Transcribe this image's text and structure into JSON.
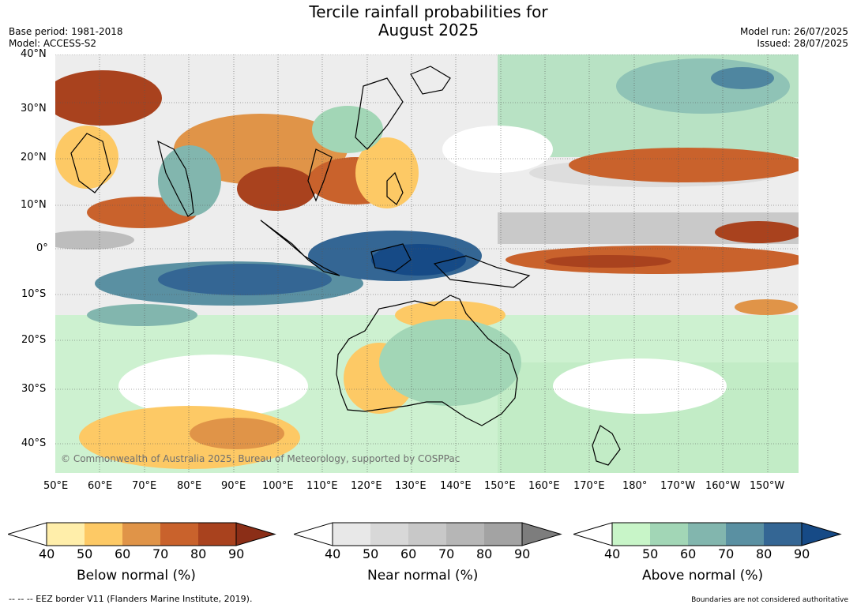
{
  "header": {
    "title_line1": "Tercile rainfall probabilities for",
    "title_line2": "August 2025",
    "base_period": "Base period: 1981-2018",
    "model": "Model: ACCESS-S2",
    "model_run": "Model run: 26/07/2025",
    "issued": "Issued: 28/07/2025"
  },
  "map": {
    "lat_labels": [
      "40°N",
      "30°N",
      "20°N",
      "10°N",
      "0°",
      "10°S",
      "20°S",
      "30°S",
      "40°S"
    ],
    "lon_labels": [
      "50°E",
      "60°E",
      "70°E",
      "80°E",
      "90°E",
      "100°E",
      "110°E",
      "120°E",
      "130°E",
      "140°E",
      "150°E",
      "160°E",
      "170°E",
      "180°",
      "170°W",
      "160°W",
      "150°W"
    ],
    "lat_range": [
      -47,
      40
    ],
    "lon_range": [
      50,
      217
    ],
    "copyright": "© Commonwealth of Australia 2025, Bureau of Meteorology, supported by COSPPac"
  },
  "colorbars": [
    {
      "title": "Below normal (%)",
      "ticks": [
        "40",
        "50",
        "60",
        "70",
        "80",
        "90"
      ],
      "colors": [
        "#ffeeaa",
        "#fdc965",
        "#e09448",
        "#c9622c",
        "#a9421e",
        "#8b2e17"
      ]
    },
    {
      "title": "Near normal (%)",
      "ticks": [
        "40",
        "50",
        "60",
        "70",
        "80",
        "90"
      ],
      "colors": [
        "#e8e8e8",
        "#d8d8d8",
        "#c8c8c8",
        "#b6b6b6",
        "#a3a3a3",
        "#7d7d7d"
      ]
    },
    {
      "title": "Above normal (%)",
      "ticks": [
        "40",
        "50",
        "60",
        "70",
        "80",
        "90"
      ],
      "colors": [
        "#c8f5c8",
        "#a2d6b6",
        "#82b6ae",
        "#5a90a2",
        "#346694",
        "#164a86"
      ]
    }
  ],
  "footer": {
    "eez": "--  --  -- EEZ border V11 (Flanders Marine Institute, 2019).",
    "disclaimer": "Boundaries are not considered authoritative"
  }
}
